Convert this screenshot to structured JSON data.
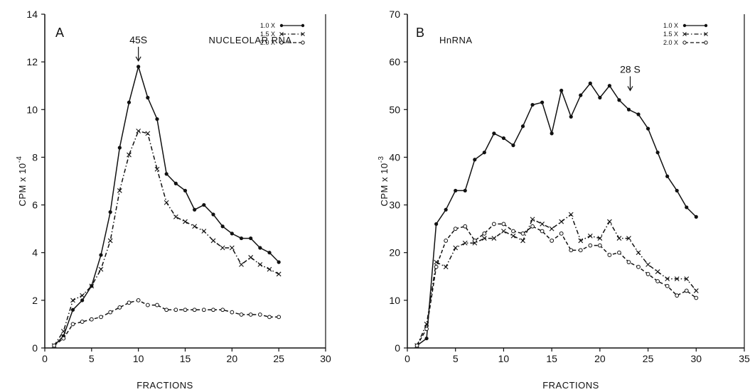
{
  "chart_data": [
    {
      "type": "line",
      "panel_label": "A",
      "title": "NUCLEOLAR RNA",
      "xlabel": "FRACTIONS",
      "ylabel": "CPM x 10",
      "ylabel_exponent": "-4",
      "xlim": [
        0,
        30
      ],
      "ylim": [
        0,
        14
      ],
      "xticks": [
        "0",
        "5",
        "10",
        "15",
        "20",
        "25",
        "30"
      ],
      "yticks": [
        "0",
        "2",
        "4",
        "6",
        "8",
        "10",
        "12",
        "14"
      ],
      "xtick_values": [
        0,
        5,
        10,
        15,
        20,
        25,
        30
      ],
      "ytick_values": [
        0,
        2,
        4,
        6,
        8,
        10,
        12,
        14
      ],
      "grid": false,
      "legend_position": "top-right",
      "annotations": [
        {
          "text": "45S",
          "x": 10
        }
      ],
      "series": [
        {
          "name": "1.0 X",
          "style": "solid",
          "marker": "filled-dot",
          "x": [
            1,
            2,
            3,
            4,
            5,
            6,
            7,
            8,
            9,
            10,
            11,
            12,
            13,
            14,
            15,
            16,
            17,
            18,
            19,
            20,
            21,
            22,
            23,
            24,
            25
          ],
          "y": [
            0.1,
            0.5,
            1.6,
            2.0,
            2.6,
            3.9,
            5.7,
            8.4,
            10.3,
            11.8,
            10.5,
            9.6,
            7.3,
            6.9,
            6.6,
            5.8,
            6.0,
            5.6,
            5.1,
            4.8,
            4.6,
            4.6,
            4.2,
            4.0,
            3.6
          ]
        },
        {
          "name": "1.5 X",
          "style": "dashdot",
          "marker": "x",
          "x": [
            1,
            2,
            3,
            4,
            5,
            6,
            7,
            8,
            9,
            10,
            11,
            12,
            13,
            14,
            15,
            16,
            17,
            18,
            19,
            20,
            21,
            22,
            23,
            24,
            25
          ],
          "y": [
            0.1,
            0.7,
            2.0,
            2.2,
            2.6,
            3.3,
            4.5,
            6.6,
            8.1,
            9.1,
            9.0,
            7.5,
            6.1,
            5.5,
            5.3,
            5.1,
            4.9,
            4.5,
            4.2,
            4.2,
            3.5,
            3.8,
            3.5,
            3.3,
            3.1
          ]
        },
        {
          "name": "2.0 X",
          "style": "dashed",
          "marker": "open-circle",
          "x": [
            1,
            2,
            3,
            4,
            5,
            6,
            7,
            8,
            9,
            10,
            11,
            12,
            13,
            14,
            15,
            16,
            17,
            18,
            19,
            20,
            21,
            22,
            23,
            24,
            25
          ],
          "y": [
            0.1,
            0.4,
            1.0,
            1.1,
            1.2,
            1.3,
            1.5,
            1.7,
            1.9,
            2.0,
            1.8,
            1.8,
            1.6,
            1.6,
            1.6,
            1.6,
            1.6,
            1.6,
            1.6,
            1.5,
            1.4,
            1.4,
            1.4,
            1.3,
            1.3
          ]
        }
      ]
    },
    {
      "type": "line",
      "panel_label": "B",
      "title": "HnRNA",
      "xlabel": "FRACTIONS",
      "ylabel": "CPM x 10",
      "ylabel_exponent": "-3",
      "xlim": [
        0,
        35
      ],
      "ylim": [
        0,
        70
      ],
      "xticks": [
        "0",
        "5",
        "10",
        "15",
        "20",
        "25",
        "30",
        "35"
      ],
      "yticks": [
        "0",
        "10",
        "20",
        "30",
        "40",
        "50",
        "60",
        "70"
      ],
      "xtick_values": [
        0,
        5,
        10,
        15,
        20,
        25,
        30,
        35
      ],
      "ytick_values": [
        0,
        10,
        20,
        30,
        40,
        50,
        60,
        70
      ],
      "grid": false,
      "legend_position": "top-right",
      "annotations": [
        {
          "text": "28 S",
          "x": 23
        }
      ],
      "series": [
        {
          "name": "1.0 X",
          "style": "solid",
          "marker": "filled-dot",
          "x": [
            1,
            2,
            3,
            4,
            5,
            6,
            7,
            8,
            9,
            10,
            11,
            12,
            13,
            14,
            15,
            16,
            17,
            18,
            19,
            20,
            21,
            22,
            23,
            24,
            25,
            26,
            27,
            28,
            29,
            30
          ],
          "y": [
            0.5,
            2,
            26,
            29,
            33,
            33,
            39.5,
            41,
            45,
            44,
            42.5,
            46.5,
            51,
            51.5,
            45,
            54,
            48.5,
            53,
            55.5,
            52.5,
            55,
            52,
            50,
            49,
            46,
            41,
            36,
            33,
            29.5,
            27.5
          ]
        },
        {
          "name": "1.5 X",
          "style": "dashdot",
          "marker": "x",
          "x": [
            1,
            2,
            3,
            4,
            5,
            6,
            7,
            8,
            9,
            10,
            11,
            12,
            13,
            14,
            15,
            16,
            17,
            18,
            19,
            20,
            21,
            22,
            23,
            24,
            25,
            26,
            27,
            28,
            29,
            30
          ],
          "y": [
            0.5,
            5,
            18,
            17,
            21,
            22,
            22,
            23,
            23,
            24.5,
            23.5,
            22.5,
            27,
            26,
            25,
            26.5,
            28,
            22.5,
            23.5,
            23,
            26.5,
            23,
            23,
            20,
            17.5,
            16,
            14.5,
            14.5,
            14.5,
            12
          ]
        },
        {
          "name": "2.0 X",
          "style": "dashed",
          "marker": "open-circle",
          "x": [
            1,
            2,
            3,
            4,
            5,
            6,
            7,
            8,
            9,
            10,
            11,
            12,
            13,
            14,
            15,
            16,
            17,
            18,
            19,
            20,
            21,
            22,
            23,
            24,
            25,
            26,
            27,
            28,
            29,
            30
          ],
          "y": [
            0.5,
            4,
            17,
            22.5,
            25,
            25.5,
            22.5,
            24,
            26,
            26,
            24.5,
            24,
            25.5,
            24.5,
            22.5,
            24,
            20.5,
            20.5,
            21.5,
            21.5,
            19.5,
            20,
            18,
            17,
            15.5,
            14,
            13,
            11,
            12,
            10.5
          ]
        }
      ]
    }
  ]
}
